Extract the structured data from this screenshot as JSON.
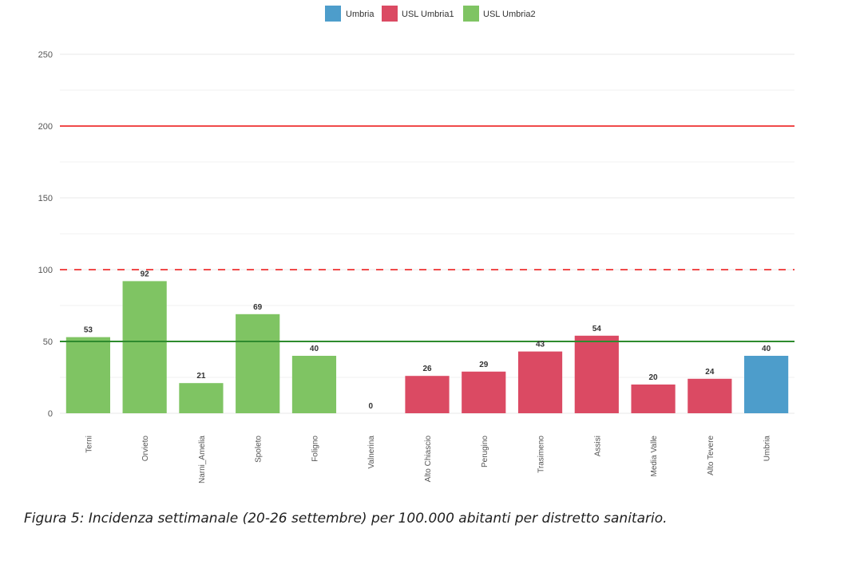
{
  "chart_data": {
    "type": "bar",
    "categories": [
      "Terni",
      "Orvieto",
      "Narni_Amelia",
      "Spoleto",
      "Foligno",
      "Valnerina",
      "Alto Chiascio",
      "Perugino",
      "Trasimeno",
      "Assisi",
      "Media Valle",
      "Alto Tevere",
      "Umbria"
    ],
    "values": [
      53,
      92,
      21,
      69,
      40,
      0,
      26,
      29,
      43,
      54,
      20,
      24,
      40
    ],
    "labels": [
      "53",
      "92",
      "21",
      "69",
      "40",
      "0",
      "26",
      "29",
      "43",
      "54",
      "20",
      "24",
      "40"
    ],
    "groups": [
      "USL Umbria2",
      "USL Umbria2",
      "USL Umbria2",
      "USL Umbria2",
      "USL Umbria2",
      "USL Umbria2",
      "USL Umbria1",
      "USL Umbria1",
      "USL Umbria1",
      "USL Umbria1",
      "USL Umbria1",
      "USL Umbria1",
      "Umbria"
    ],
    "legend": [
      {
        "name": "Umbria",
        "color": "#4d9dcb"
      },
      {
        "name": "USL Umbria1",
        "color": "#db4a63"
      },
      {
        "name": "USL Umbria2",
        "color": "#7fc463"
      }
    ],
    "legend_position": "top",
    "ylim": [
      0,
      250
    ],
    "yticks": [
      "0",
      "50",
      "100",
      "150",
      "200",
      "250"
    ],
    "reference_lines": [
      {
        "value": 200,
        "color": "#f04a4a",
        "style": "solid"
      },
      {
        "value": 100,
        "color": "#f04a4a",
        "style": "dashed"
      },
      {
        "value": 50,
        "color": "#2e8b2e",
        "style": "solid"
      }
    ],
    "grid": true,
    "title": "",
    "xlabel": "",
    "ylabel": ""
  },
  "caption": "Figura 5: Incidenza settimanale (20-26 settembre) per 100.000 abitanti per distretto sanitario."
}
